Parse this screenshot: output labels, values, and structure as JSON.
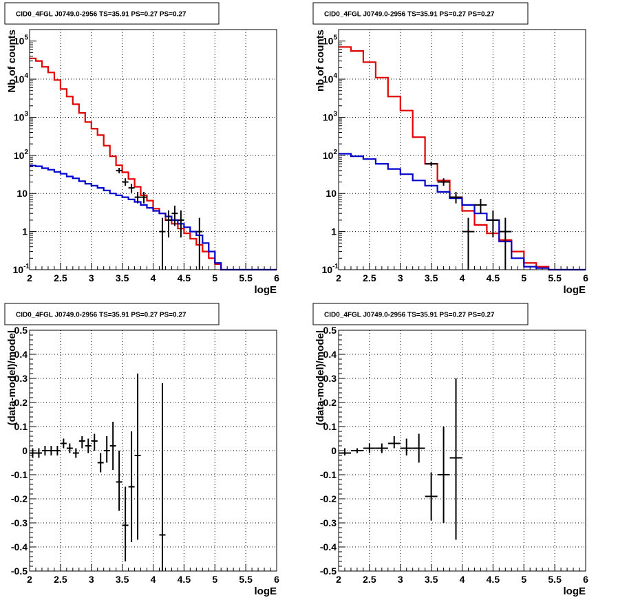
{
  "colors": {
    "red_model": "#e00000",
    "blue_model": "#0000cc",
    "data": "#000000",
    "grid": "#000000",
    "background": "#ffffff"
  },
  "chart_data": [
    {
      "type": "line",
      "title": "CID0_4FGL J0749.0-2956 TS=35.91 PS=0.27 PS=0.27",
      "xlabel": "logE",
      "ylabel": "Nb of counts",
      "xlim": [
        2,
        6
      ],
      "ylim": [
        0.1,
        200000
      ],
      "log_y": true,
      "grid": true,
      "x_ticks": [
        "2",
        "2.5",
        "3",
        "3.5",
        "4",
        "4.5",
        "5",
        "5.5",
        "6"
      ],
      "y_ticks": [
        {
          "v": 0.1,
          "base": "10",
          "exp": "-1"
        },
        {
          "v": 1,
          "base": "1",
          "exp": ""
        },
        {
          "v": 10,
          "base": "10",
          "exp": ""
        },
        {
          "v": 100,
          "base": "10",
          "exp": "2"
        },
        {
          "v": 1000,
          "base": "10",
          "exp": "3"
        },
        {
          "v": 10000,
          "base": "10",
          "exp": "4"
        },
        {
          "v": 100000,
          "base": "10",
          "exp": "5"
        }
      ],
      "bin_edges": [
        2.0,
        2.1,
        2.2,
        2.3,
        2.4,
        2.5,
        2.6,
        2.7,
        2.8,
        2.9,
        3.0,
        3.1,
        3.2,
        3.3,
        3.4,
        3.5,
        3.6,
        3.7,
        3.8,
        3.9,
        4.0,
        4.1,
        4.2,
        4.3,
        4.4,
        4.5,
        4.6,
        4.7,
        4.8,
        4.9,
        5.0,
        5.1,
        5.2,
        5.3,
        5.4,
        5.5,
        5.6,
        5.7,
        5.8,
        5.9,
        6.0
      ],
      "series": [
        {
          "kind": "step",
          "color_key": "red_model",
          "values": [
            35000,
            30000,
            21000,
            15000,
            9500,
            5500,
            3500,
            2200,
            1300,
            750,
            500,
            340,
            180,
            95,
            55,
            36,
            24,
            15,
            9,
            6.5,
            4,
            3,
            2,
            1.6,
            1.2,
            0.9,
            0.65,
            0.45,
            0.3,
            0.2,
            0.14,
            0.1,
            0.1,
            0.1,
            0.1,
            0.1,
            0.1,
            0.1,
            0.1,
            0.1
          ]
        },
        {
          "kind": "step",
          "color_key": "blue_model",
          "values": [
            54,
            52,
            46,
            42,
            37,
            33,
            28,
            25,
            21,
            18,
            16,
            14,
            12,
            10,
            9,
            8,
            7,
            6,
            5,
            4.2,
            3.5,
            3,
            2.5,
            2,
            1.6,
            1.3,
            1.0,
            0.8,
            0.5,
            0.3,
            0.15,
            0.1,
            0.1,
            0.1,
            0.1,
            0.1,
            0.1,
            0.1,
            0.1,
            0.1
          ]
        },
        {
          "kind": "points",
          "color_key": "data",
          "points": [
            {
              "x": 3.45,
              "y": 40,
              "ylo": 34,
              "yhi": 47,
              "xhw": 0.05
            },
            {
              "x": 3.55,
              "y": 20,
              "ylo": 16,
              "yhi": 25,
              "xhw": 0.05
            },
            {
              "x": 3.65,
              "y": 14,
              "ylo": 10.5,
              "yhi": 18,
              "xhw": 0.05
            },
            {
              "x": 3.75,
              "y": 8,
              "ylo": 5.5,
              "yhi": 11,
              "xhw": 0.05
            },
            {
              "x": 3.85,
              "y": 8,
              "ylo": 5.5,
              "yhi": 11,
              "xhw": 0.05
            },
            {
              "x": 4.15,
              "y": 1,
              "ylo": 0.1,
              "yhi": 2.3,
              "xhw": 0.05
            },
            {
              "x": 4.25,
              "y": 2,
              "ylo": 0.7,
              "yhi": 3.6,
              "xhw": 0.05
            },
            {
              "x": 4.35,
              "y": 3,
              "ylo": 1.4,
              "yhi": 4.8,
              "xhw": 0.05
            },
            {
              "x": 4.45,
              "y": 2,
              "ylo": 0.7,
              "yhi": 3.6,
              "xhw": 0.05
            },
            {
              "x": 4.75,
              "y": 1,
              "ylo": 0.1,
              "yhi": 2.3,
              "xhw": 0.05
            }
          ]
        }
      ]
    },
    {
      "type": "line",
      "title": "CID0_4FGL J0749.0-2956 TS=35.91 PS=0.27 PS=0.27",
      "xlabel": "logE",
      "ylabel": "nb of counts",
      "xlim": [
        2,
        6
      ],
      "ylim": [
        0.1,
        200000
      ],
      "log_y": true,
      "grid": true,
      "x_ticks": [
        "2",
        "2.5",
        "3",
        "3.5",
        "4",
        "4.5",
        "5",
        "5.5",
        "6"
      ],
      "y_ticks": [
        {
          "v": 0.1,
          "base": "10",
          "exp": "-1"
        },
        {
          "v": 1,
          "base": "1",
          "exp": ""
        },
        {
          "v": 10,
          "base": "10",
          "exp": ""
        },
        {
          "v": 100,
          "base": "10",
          "exp": "2"
        },
        {
          "v": 1000,
          "base": "10",
          "exp": "3"
        },
        {
          "v": 10000,
          "base": "10",
          "exp": "4"
        },
        {
          "v": 100000,
          "base": "10",
          "exp": "5"
        }
      ],
      "bin_edges": [
        2.0,
        2.2,
        2.4,
        2.6,
        2.8,
        3.0,
        3.2,
        3.4,
        3.6,
        3.8,
        4.0,
        4.2,
        4.4,
        4.6,
        4.8,
        5.0,
        5.2,
        5.4,
        5.6,
        5.8,
        6.0
      ],
      "series": [
        {
          "kind": "step",
          "color_key": "red_model",
          "values": [
            70000,
            55000,
            28000,
            11000,
            3500,
            1500,
            300,
            60,
            22,
            8,
            3.5,
            1.5,
            0.9,
            0.6,
            0.3,
            0.15,
            0.12,
            0.1,
            0.1,
            0.1
          ]
        },
        {
          "kind": "step",
          "color_key": "blue_model",
          "values": [
            110,
            95,
            80,
            60,
            44,
            32,
            22,
            16,
            11,
            7.5,
            5,
            3,
            2,
            0.55,
            0.2,
            0.12,
            0.11,
            0.1,
            0.1,
            0.1
          ]
        },
        {
          "kind": "points",
          "color_key": "data",
          "points": [
            {
              "x": 3.5,
              "y": 60,
              "ylo": 52,
              "yhi": 68,
              "xhw": 0.1
            },
            {
              "x": 3.7,
              "y": 20,
              "ylo": 16,
              "yhi": 25,
              "xhw": 0.1
            },
            {
              "x": 3.9,
              "y": 8,
              "ylo": 5.5,
              "yhi": 11,
              "xhw": 0.1
            },
            {
              "x": 4.1,
              "y": 1,
              "ylo": 0.1,
              "yhi": 2.3,
              "xhw": 0.1
            },
            {
              "x": 4.3,
              "y": 5,
              "ylo": 3,
              "yhi": 7.2,
              "xhw": 0.1
            },
            {
              "x": 4.5,
              "y": 2,
              "ylo": 0.7,
              "yhi": 3.6,
              "xhw": 0.1
            },
            {
              "x": 4.7,
              "y": 1,
              "ylo": 0.1,
              "yhi": 2.3,
              "xhw": 0.1
            }
          ]
        }
      ]
    },
    {
      "type": "scatter",
      "title": "CID0_4FGL J0749.0-2956 TS=35.91 PS=0.27 PS=0.27",
      "xlabel": "logE",
      "ylabel": "(data-model)/model",
      "xlim": [
        2,
        6
      ],
      "ylim": [
        -0.5,
        0.5
      ],
      "log_y": false,
      "grid": true,
      "x_ticks": [
        "2",
        "2.5",
        "3",
        "3.5",
        "4",
        "4.5",
        "5",
        "5.5",
        "6"
      ],
      "y_ticks": [
        {
          "v": -0.5,
          "base": "-0.5",
          "exp": ""
        },
        {
          "v": -0.4,
          "base": "-0.4",
          "exp": ""
        },
        {
          "v": -0.3,
          "base": "-0.3",
          "exp": ""
        },
        {
          "v": -0.2,
          "base": "-0.2",
          "exp": ""
        },
        {
          "v": -0.1,
          "base": "-0.1",
          "exp": ""
        },
        {
          "v": 0,
          "base": "0",
          "exp": ""
        },
        {
          "v": 0.1,
          "base": "0.1",
          "exp": ""
        },
        {
          "v": 0.2,
          "base": "0.2",
          "exp": ""
        },
        {
          "v": 0.3,
          "base": "0.3",
          "exp": ""
        },
        {
          "v": 0.4,
          "base": "0.4",
          "exp": ""
        },
        {
          "v": 0.5,
          "base": "0.5",
          "exp": ""
        }
      ],
      "series": [
        {
          "kind": "points",
          "color_key": "data",
          "points": [
            {
              "x": 2.05,
              "y": -0.01,
              "ylo": -0.03,
              "yhi": 0.01,
              "xhw": 0.05
            },
            {
              "x": 2.15,
              "y": -0.01,
              "ylo": -0.03,
              "yhi": 0.01,
              "xhw": 0.05
            },
            {
              "x": 2.25,
              "y": 0.0,
              "ylo": -0.02,
              "yhi": 0.02,
              "xhw": 0.05
            },
            {
              "x": 2.35,
              "y": 0.0,
              "ylo": -0.02,
              "yhi": 0.02,
              "xhw": 0.05
            },
            {
              "x": 2.45,
              "y": 0.0,
              "ylo": -0.02,
              "yhi": 0.02,
              "xhw": 0.05
            },
            {
              "x": 2.55,
              "y": 0.03,
              "ylo": 0.01,
              "yhi": 0.05,
              "xhw": 0.05
            },
            {
              "x": 2.65,
              "y": 0.01,
              "ylo": -0.01,
              "yhi": 0.03,
              "xhw": 0.05
            },
            {
              "x": 2.75,
              "y": -0.01,
              "ylo": -0.03,
              "yhi": 0.01,
              "xhw": 0.05
            },
            {
              "x": 2.85,
              "y": 0.04,
              "ylo": 0.01,
              "yhi": 0.06,
              "xhw": 0.05
            },
            {
              "x": 2.95,
              "y": 0.02,
              "ylo": -0.01,
              "yhi": 0.05,
              "xhw": 0.05
            },
            {
              "x": 3.05,
              "y": 0.04,
              "ylo": 0.0,
              "yhi": 0.07,
              "xhw": 0.05
            },
            {
              "x": 3.15,
              "y": -0.05,
              "ylo": -0.09,
              "yhi": -0.01,
              "xhw": 0.05
            },
            {
              "x": 3.25,
              "y": 0.0,
              "ylo": -0.05,
              "yhi": 0.06,
              "xhw": 0.05
            },
            {
              "x": 3.35,
              "y": 0.02,
              "ylo": -0.08,
              "yhi": 0.12,
              "xhw": 0.05
            },
            {
              "x": 3.45,
              "y": -0.13,
              "ylo": -0.25,
              "yhi": 0.0,
              "xhw": 0.05
            },
            {
              "x": 3.55,
              "y": -0.31,
              "ylo": -0.46,
              "yhi": -0.15,
              "xhw": 0.05
            },
            {
              "x": 3.65,
              "y": -0.15,
              "ylo": -0.38,
              "yhi": 0.08,
              "xhw": 0.05
            },
            {
              "x": 3.75,
              "y": -0.02,
              "ylo": -0.37,
              "yhi": 0.32,
              "xhw": 0.05
            },
            {
              "x": 4.15,
              "y": -0.35,
              "ylo": -0.5,
              "yhi": 0.28,
              "xhw": 0.05
            }
          ]
        }
      ]
    },
    {
      "type": "scatter",
      "title": "CID0_4FGL J0749.0-2956 TS=35.91 PS=0.27 PS=0.27",
      "xlabel": "logE",
      "ylabel": "(data-model)/model",
      "xlim": [
        2,
        6
      ],
      "ylim": [
        -0.5,
        0.5
      ],
      "log_y": false,
      "grid": true,
      "x_ticks": [
        "2",
        "2.5",
        "3",
        "3.5",
        "4",
        "4.5",
        "5",
        "5.5",
        "6"
      ],
      "y_ticks": [
        {
          "v": -0.5,
          "base": "-0.5",
          "exp": ""
        },
        {
          "v": -0.4,
          "base": "-0.4",
          "exp": ""
        },
        {
          "v": -0.3,
          "base": "-0.3",
          "exp": ""
        },
        {
          "v": -0.2,
          "base": "-0.2",
          "exp": ""
        },
        {
          "v": -0.1,
          "base": "-0.1",
          "exp": ""
        },
        {
          "v": 0,
          "base": "0",
          "exp": ""
        },
        {
          "v": 0.1,
          "base": "0.1",
          "exp": ""
        },
        {
          "v": 0.2,
          "base": "0.2",
          "exp": ""
        },
        {
          "v": 0.3,
          "base": "0.3",
          "exp": ""
        },
        {
          "v": 0.4,
          "base": "0.4",
          "exp": ""
        },
        {
          "v": 0.5,
          "base": "0.5",
          "exp": ""
        }
      ],
      "series": [
        {
          "kind": "points",
          "color_key": "data",
          "points": [
            {
              "x": 2.1,
              "y": -0.01,
              "ylo": -0.02,
              "yhi": 0.01,
              "xhw": 0.1
            },
            {
              "x": 2.3,
              "y": 0.0,
              "ylo": -0.01,
              "yhi": 0.01,
              "xhw": 0.1
            },
            {
              "x": 2.5,
              "y": 0.01,
              "ylo": -0.01,
              "yhi": 0.03,
              "xhw": 0.1
            },
            {
              "x": 2.7,
              "y": 0.01,
              "ylo": -0.01,
              "yhi": 0.03,
              "xhw": 0.1
            },
            {
              "x": 2.9,
              "y": 0.03,
              "ylo": 0.01,
              "yhi": 0.06,
              "xhw": 0.1
            },
            {
              "x": 3.1,
              "y": 0.01,
              "ylo": -0.02,
              "yhi": 0.05,
              "xhw": 0.1
            },
            {
              "x": 3.3,
              "y": 0.01,
              "ylo": -0.05,
              "yhi": 0.07,
              "xhw": 0.1
            },
            {
              "x": 3.5,
              "y": -0.19,
              "ylo": -0.29,
              "yhi": -0.09,
              "xhw": 0.1
            },
            {
              "x": 3.7,
              "y": -0.1,
              "ylo": -0.3,
              "yhi": 0.1,
              "xhw": 0.1
            },
            {
              "x": 3.9,
              "y": -0.03,
              "ylo": -0.37,
              "yhi": 0.3,
              "xhw": 0.1
            }
          ]
        }
      ]
    }
  ]
}
